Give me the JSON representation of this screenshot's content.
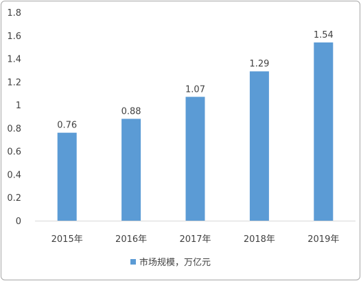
{
  "chart_data": {
    "type": "bar",
    "categories": [
      "2015年",
      "2016年",
      "2017年",
      "2018年",
      "2019年"
    ],
    "series": [
      {
        "name": "市场规模，万亿元",
        "values": [
          0.76,
          0.88,
          1.07,
          1.29,
          1.54
        ],
        "color": "#5b9bd5"
      }
    ],
    "ylim": [
      0,
      1.8
    ],
    "yticks": [
      "0",
      "0.2",
      "0.4",
      "0.6",
      "0.8",
      "1",
      "1.2",
      "1.4",
      "1.6",
      "1.8"
    ],
    "data_labels": [
      "0.76",
      "0.88",
      "1.07",
      "1.29",
      "1.54"
    ],
    "grid": false,
    "legend_position": "bottom"
  }
}
